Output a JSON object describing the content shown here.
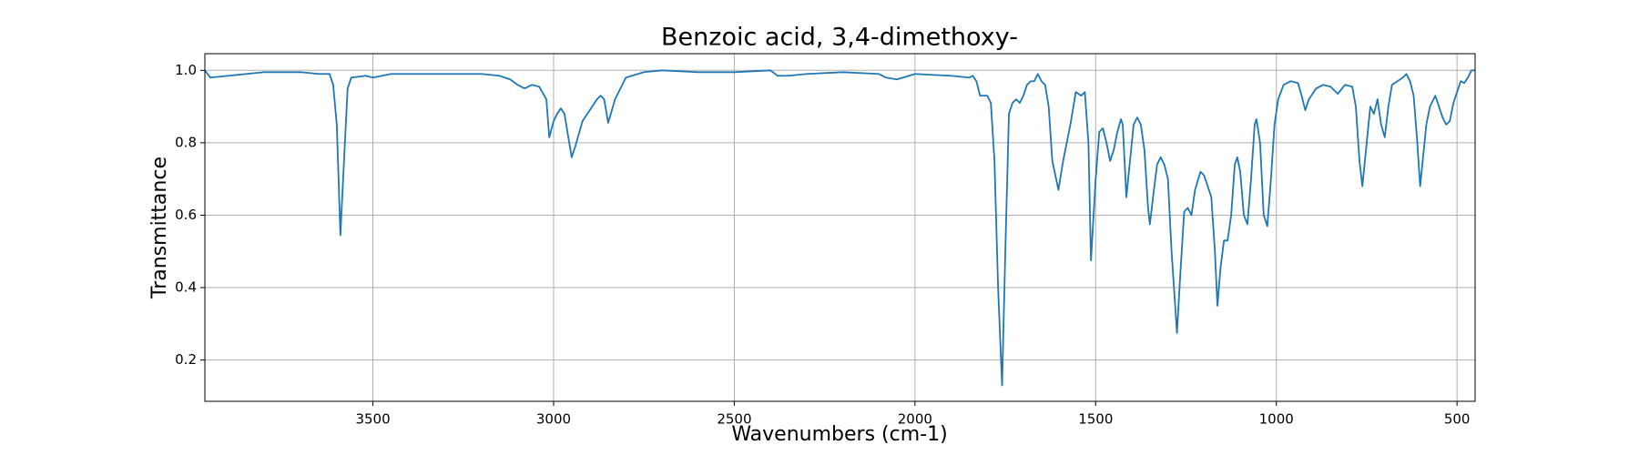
{
  "chart_data": {
    "type": "line",
    "title": "Benzoic acid, 3,4-dimethoxy-",
    "x_label": "Wavenumbers (cm-1)",
    "y_label": "Transmittance",
    "color": "#1f77b4",
    "grid": true,
    "xlim": [
      3965,
      450
    ],
    "ylim": [
      0.086,
      1.046
    ],
    "xticks": [
      3500,
      3000,
      2500,
      2000,
      1500,
      1000,
      500
    ],
    "yticks": [
      {
        "value": 1,
        "label": "1.0"
      },
      0.8,
      0.6,
      0.4,
      0.2
    ],
    "x": [
      3965,
      3950,
      3900,
      3850,
      3800,
      3750,
      3700,
      3650,
      3620,
      3610,
      3600,
      3595,
      3590,
      3580,
      3570,
      3560,
      3520,
      3500,
      3450,
      3400,
      3300,
      3200,
      3150,
      3120,
      3100,
      3080,
      3060,
      3040,
      3020,
      3012,
      3000,
      2990,
      2980,
      2970,
      2960,
      2950,
      2940,
      2920,
      2900,
      2880,
      2870,
      2860,
      2849,
      2830,
      2800,
      2750,
      2700,
      2600,
      2500,
      2400,
      2380,
      2350,
      2300,
      2200,
      2100,
      2080,
      2050,
      2000,
      1900,
      1850,
      1840,
      1830,
      1820,
      1800,
      1790,
      1780,
      1770,
      1759,
      1750,
      1740,
      1730,
      1720,
      1710,
      1700,
      1690,
      1680,
      1670,
      1660,
      1650,
      1640,
      1630,
      1620,
      1603,
      1590,
      1570,
      1555,
      1540,
      1530,
      1520,
      1513,
      1500,
      1490,
      1480,
      1470,
      1460,
      1450,
      1440,
      1430,
      1425,
      1415,
      1405,
      1395,
      1385,
      1375,
      1365,
      1355,
      1350,
      1340,
      1330,
      1320,
      1310,
      1300,
      1290,
      1275,
      1265,
      1255,
      1245,
      1235,
      1225,
      1210,
      1200,
      1190,
      1180,
      1170,
      1163,
      1155,
      1145,
      1135,
      1125,
      1115,
      1108,
      1100,
      1090,
      1080,
      1070,
      1060,
      1055,
      1045,
      1035,
      1025,
      1015,
      1005,
      995,
      980,
      960,
      940,
      930,
      920,
      910,
      890,
      870,
      850,
      830,
      810,
      790,
      780,
      770,
      762,
      750,
      740,
      730,
      720,
      710,
      700,
      690,
      680,
      665,
      650,
      640,
      630,
      620,
      610,
      602,
      595,
      585,
      575,
      560,
      550,
      540,
      530,
      520,
      510,
      500,
      490,
      480,
      470,
      460,
      451
    ],
    "values": [
      1.0,
      0.98,
      0.985,
      0.99,
      0.995,
      0.995,
      0.995,
      0.99,
      0.99,
      0.96,
      0.85,
      0.7,
      0.545,
      0.75,
      0.95,
      0.98,
      0.985,
      0.98,
      0.99,
      0.99,
      0.99,
      0.99,
      0.985,
      0.975,
      0.96,
      0.95,
      0.96,
      0.955,
      0.92,
      0.815,
      0.86,
      0.88,
      0.895,
      0.88,
      0.82,
      0.76,
      0.79,
      0.86,
      0.89,
      0.92,
      0.93,
      0.92,
      0.855,
      0.92,
      0.98,
      0.995,
      1.0,
      0.995,
      0.995,
      1.0,
      0.985,
      0.985,
      0.99,
      0.995,
      0.99,
      0.98,
      0.975,
      0.99,
      0.985,
      0.98,
      0.985,
      0.97,
      0.93,
      0.93,
      0.91,
      0.75,
      0.4,
      0.13,
      0.5,
      0.88,
      0.91,
      0.92,
      0.91,
      0.93,
      0.96,
      0.97,
      0.97,
      0.99,
      0.97,
      0.96,
      0.9,
      0.75,
      0.67,
      0.75,
      0.85,
      0.94,
      0.93,
      0.94,
      0.8,
      0.475,
      0.7,
      0.83,
      0.84,
      0.8,
      0.75,
      0.78,
      0.83,
      0.865,
      0.85,
      0.65,
      0.75,
      0.85,
      0.87,
      0.85,
      0.78,
      0.62,
      0.575,
      0.66,
      0.74,
      0.76,
      0.74,
      0.7,
      0.5,
      0.275,
      0.45,
      0.61,
      0.62,
      0.6,
      0.67,
      0.72,
      0.71,
      0.68,
      0.65,
      0.5,
      0.35,
      0.45,
      0.53,
      0.53,
      0.6,
      0.74,
      0.76,
      0.72,
      0.6,
      0.575,
      0.7,
      0.85,
      0.865,
      0.8,
      0.6,
      0.57,
      0.7,
      0.85,
      0.92,
      0.96,
      0.97,
      0.965,
      0.93,
      0.89,
      0.92,
      0.95,
      0.96,
      0.955,
      0.935,
      0.96,
      0.955,
      0.9,
      0.75,
      0.68,
      0.8,
      0.9,
      0.88,
      0.92,
      0.85,
      0.815,
      0.9,
      0.96,
      0.97,
      0.98,
      0.99,
      0.97,
      0.93,
      0.8,
      0.68,
      0.75,
      0.85,
      0.9,
      0.93,
      0.9,
      0.87,
      0.85,
      0.86,
      0.91,
      0.94,
      0.97,
      0.965,
      0.98,
      1.0,
      1.0
    ]
  }
}
